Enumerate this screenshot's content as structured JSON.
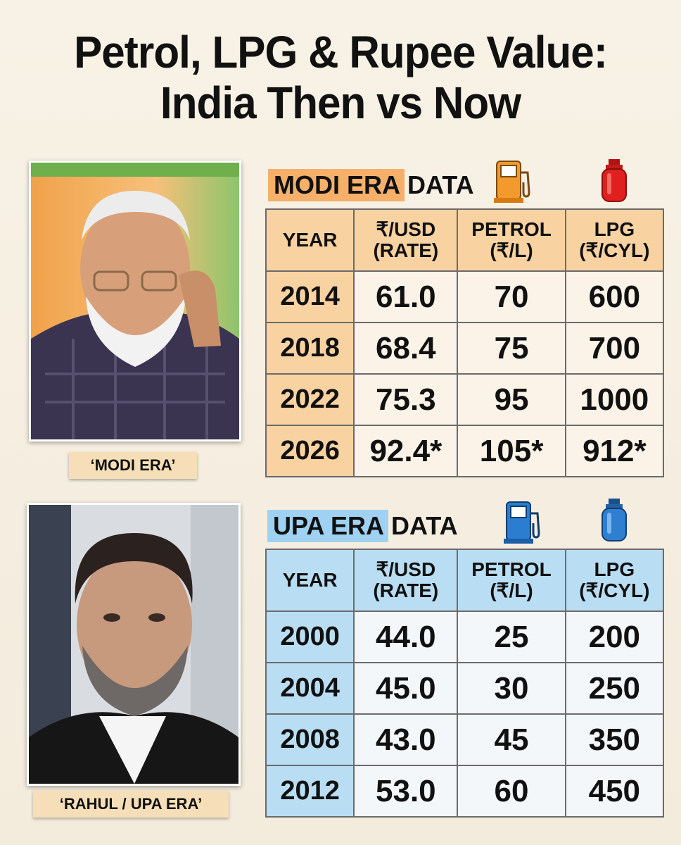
{
  "title": {
    "line1": "Petrol, LPG & Rupee Value:",
    "line2": "India Then vs Now"
  },
  "modi": {
    "caption": "‘MODI ERA’",
    "header_tag": "MODI ERA",
    "header_rest": "DATA",
    "accent": "#f6b06a",
    "columns": [
      {
        "l1": "YEAR",
        "l2": ""
      },
      {
        "l1": "₹/USD",
        "l2": "(RATE)"
      },
      {
        "l1": "PETROL",
        "l2": "(₹/L)"
      },
      {
        "l1": "LPG",
        "l2": "(₹/CYL)"
      }
    ],
    "rows": [
      [
        "2014",
        "61.0",
        "70",
        "600"
      ],
      [
        "2018",
        "68.4",
        "75",
        "700"
      ],
      [
        "2022",
        "75.3",
        "95",
        "1000"
      ],
      [
        "2026",
        "92.4*",
        "105*",
        "912*"
      ]
    ]
  },
  "upa": {
    "caption": "‘RAHUL / UPA ERA’",
    "header_tag": "UPA ERA",
    "header_rest": "DATA",
    "accent": "#9fd2f2",
    "columns": [
      {
        "l1": "YEAR",
        "l2": ""
      },
      {
        "l1": "₹/USD",
        "l2": "(RATE)"
      },
      {
        "l1": "PETROL",
        "l2": "(₹/L)"
      },
      {
        "l1": "LPG",
        "l2": "(₹/CYL)"
      }
    ],
    "rows": [
      [
        "2000",
        "44.0",
        "25",
        "200"
      ],
      [
        "2004",
        "45.0",
        "30",
        "250"
      ],
      [
        "2008",
        "43.0",
        "45",
        "350"
      ],
      [
        "2012",
        "53.0",
        "60",
        "450"
      ]
    ]
  },
  "icons": {
    "modi_fuel": "fuel-pump-icon",
    "modi_lpg": "gas-cylinder-icon",
    "upa_fuel": "fuel-pump-icon",
    "upa_lpg": "gas-cylinder-icon"
  }
}
